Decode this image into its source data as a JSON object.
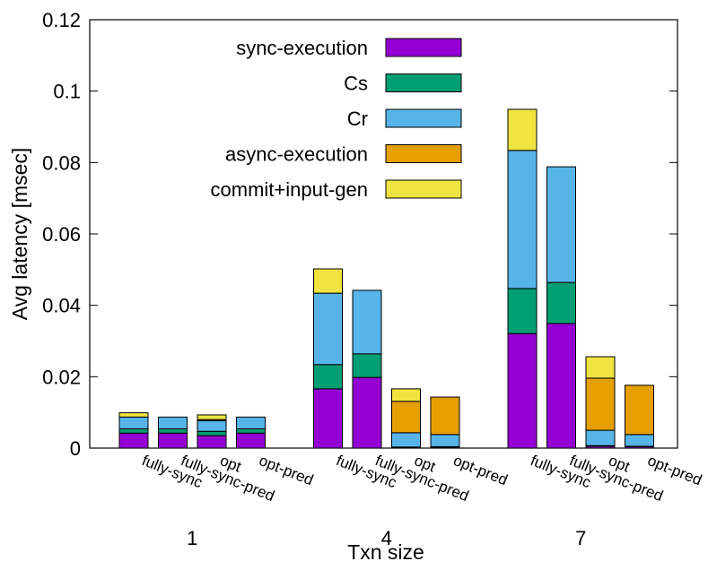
{
  "chart_data": {
    "type": "stacked-bar",
    "groups": [
      "1",
      "4",
      "7"
    ],
    "categories": [
      "fully-sync",
      "fully-sync-pred",
      "opt",
      "opt-pred",
      "fully-sync",
      "fully-sync-pred",
      "opt",
      "opt-pred",
      "fully-sync",
      "fully-sync-pred",
      "opt",
      "opt-pred"
    ],
    "series": [
      {
        "name": "sync-execution",
        "color": "#9400d3",
        "values": [
          0.0042,
          0.0042,
          0.0035,
          0.0042,
          0.0166,
          0.0198,
          0.0002,
          0.0003,
          0.0321,
          0.0349,
          0.0005,
          0.0004
        ]
      },
      {
        "name": "Cs",
        "color": "#009e73",
        "values": [
          0.0012,
          0.0012,
          0.0012,
          0.0012,
          0.0068,
          0.0066,
          0.0001,
          0.0001,
          0.0126,
          0.0115,
          0.0002,
          0.0001
        ]
      },
      {
        "name": "Cr",
        "color": "#56b4e9",
        "values": [
          0.0033,
          0.0033,
          0.003,
          0.0033,
          0.02,
          0.0178,
          0.004,
          0.0034,
          0.0387,
          0.0324,
          0.0043,
          0.0033
        ]
      },
      {
        "name": "async-execution",
        "color": "#e69f00",
        "values": [
          0,
          0,
          0.0003,
          0,
          0,
          0,
          0.0088,
          0.0105,
          0,
          0,
          0.0146,
          0.0138
        ]
      },
      {
        "name": "commit+input-gen",
        "color": "#f0e442",
        "values": [
          0.0012,
          0,
          0.0013,
          0,
          0.0068,
          0,
          0.0035,
          0,
          0.0115,
          0,
          0.006,
          0
        ]
      }
    ],
    "xlabel": "Txn size",
    "ylabel": "Avg latency [msec]",
    "ylim": [
      0,
      0.12
    ],
    "yticks": [
      0,
      0.02,
      0.04,
      0.06,
      0.08,
      0.1,
      0.12
    ]
  }
}
